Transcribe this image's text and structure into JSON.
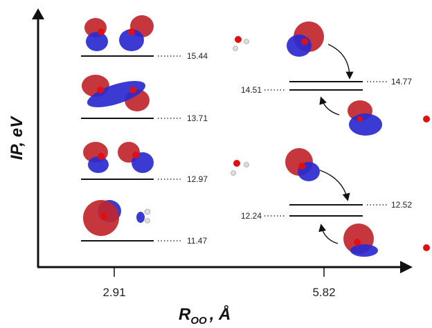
{
  "y_axis": {
    "label": "IP, eV"
  },
  "x_axis": {
    "label": {
      "main": "R",
      "subscript": "OO",
      "suffix": ", Å"
    },
    "ticks": [
      "2.91",
      "5.82"
    ]
  },
  "left_levels": [
    "15.44",
    "13.71",
    "12.97",
    "11.47"
  ],
  "right_levels": [
    {
      "upper": "14.77",
      "lower": "14.51"
    },
    {
      "upper": "12.52",
      "lower": "12.24"
    }
  ]
}
